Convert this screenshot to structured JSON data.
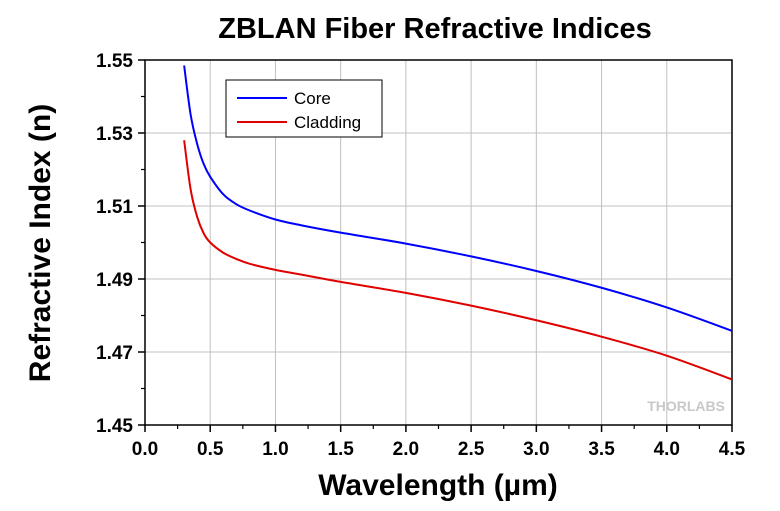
{
  "chart_data": {
    "type": "line",
    "title": "ZBLAN Fiber Refractive Indices",
    "xlabel": "Wavelength (µm)",
    "ylabel": "Refractive Index (n)",
    "xlim": [
      0.0,
      4.5
    ],
    "ylim": [
      1.45,
      1.55
    ],
    "x_ticks": [
      "0.0",
      "0.5",
      "1.0",
      "1.5",
      "2.0",
      "2.5",
      "3.0",
      "3.5",
      "4.0",
      "4.5"
    ],
    "y_ticks": [
      "1.45",
      "1.47",
      "1.49",
      "1.51",
      "1.53",
      "1.55"
    ],
    "grid": true,
    "legend_position": "top-left",
    "series": [
      {
        "name": "Core",
        "color": "#0000ff",
        "x": [
          0.3,
          0.35,
          0.4,
          0.45,
          0.5,
          0.6,
          0.7,
          0.8,
          1.0,
          1.2,
          1.5,
          2.0,
          2.5,
          3.0,
          3.5,
          4.0,
          4.5
        ],
        "y": [
          1.5485,
          1.535,
          1.527,
          1.5215,
          1.518,
          1.5132,
          1.5105,
          1.5088,
          1.5063,
          1.5047,
          1.5027,
          1.4997,
          1.4962,
          1.4922,
          1.4876,
          1.4822,
          1.4758
        ]
      },
      {
        "name": "Cladding",
        "color": "#e00000",
        "x": [
          0.3,
          0.35,
          0.4,
          0.45,
          0.5,
          0.6,
          0.7,
          0.8,
          1.0,
          1.2,
          1.5,
          2.0,
          2.5,
          3.0,
          3.5,
          4.0,
          4.5
        ],
        "y": [
          1.528,
          1.5145,
          1.507,
          1.5025,
          1.5,
          1.4972,
          1.4955,
          1.4942,
          1.4925,
          1.4912,
          1.4892,
          1.4862,
          1.4827,
          1.4787,
          1.4742,
          1.469,
          1.4625
        ]
      }
    ]
  },
  "watermark": "THORLABS"
}
